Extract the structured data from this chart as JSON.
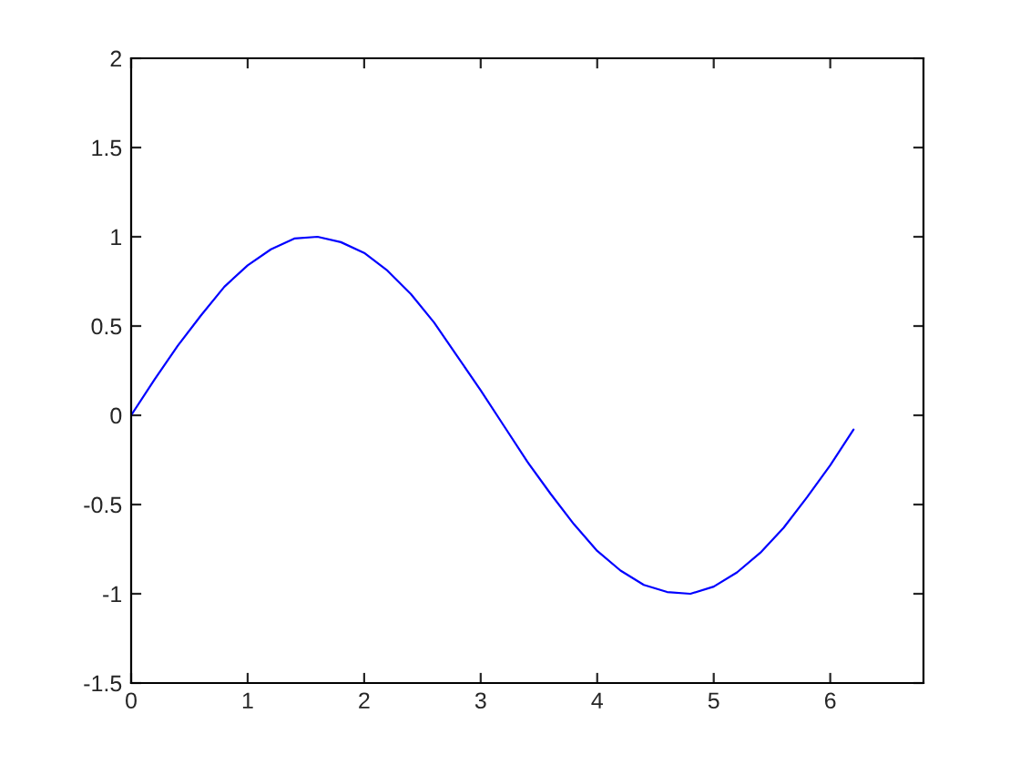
{
  "chart_data": {
    "type": "line",
    "x": [
      0,
      0.2,
      0.4,
      0.6,
      0.8,
      1.0,
      1.2,
      1.4,
      1.6,
      1.8,
      2.0,
      2.2,
      2.4,
      2.6,
      2.8,
      3.0,
      3.2,
      3.4,
      3.6,
      3.8,
      4.0,
      4.2,
      4.4,
      4.6,
      4.8,
      5.0,
      5.2,
      5.4,
      5.6,
      5.8,
      6.0,
      6.2
    ],
    "series": [
      {
        "color": "#0000ff",
        "values": [
          0,
          0.2,
          0.39,
          0.56,
          0.72,
          0.84,
          0.93,
          0.99,
          1.0,
          0.97,
          0.91,
          0.81,
          0.68,
          0.52,
          0.33,
          0.14,
          -0.06,
          -0.26,
          -0.44,
          -0.61,
          -0.76,
          -0.87,
          -0.95,
          -0.99,
          -1.0,
          -0.96,
          -0.88,
          -0.77,
          -0.63,
          -0.46,
          -0.28,
          -0.08
        ]
      }
    ],
    "xlim": [
      0,
      6.8
    ],
    "xticks": [
      0,
      1,
      2,
      3,
      4,
      5,
      6
    ],
    "ylim": [
      -1.5,
      2
    ],
    "yticks": [
      -1.5,
      -1,
      -0.5,
      0,
      0.5,
      1,
      1.5,
      2
    ],
    "grid": false,
    "marker": "none",
    "line_style": "solid"
  }
}
